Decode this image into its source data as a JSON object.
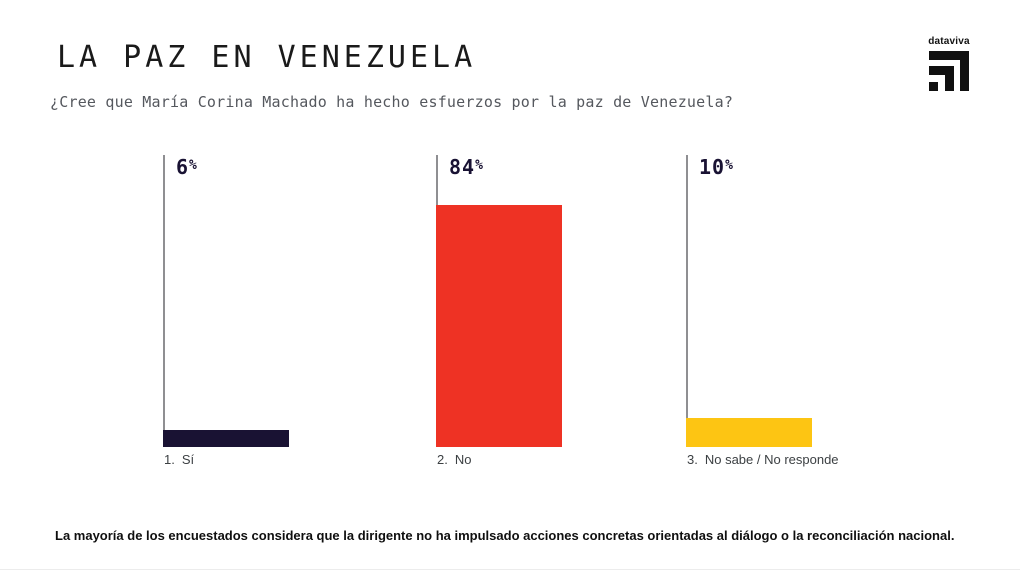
{
  "header": {
    "title": "LA PAZ EN VENEZUELA",
    "question": "¿Cree que María Corina Machado ha hecho esfuerzos por la paz de Venezuela?",
    "brand": {
      "name": "dataviva"
    }
  },
  "chart_data": {
    "type": "bar",
    "title": "LA PAZ EN VENEZUELA",
    "subtitle": "¿Cree que María Corina Machado ha hecho esfuerzos por la paz de Venezuela?",
    "categories": [
      "1. Sí",
      "2. No",
      "3. No sabe / No responde"
    ],
    "values": [
      6,
      84,
      10
    ],
    "value_labels": [
      "6%",
      "84%",
      "10%"
    ],
    "unit": "%",
    "ylim": [
      0,
      100
    ],
    "grid": false,
    "legend_position": "none",
    "bar_colors": [
      "#191233",
      "#ee3224",
      "#fdc513"
    ]
  },
  "groups": [
    {
      "value": 6,
      "cat_num": "1.",
      "cat_text": "Sí",
      "color": "#191233"
    },
    {
      "value": 84,
      "cat_num": "2.",
      "cat_text": "No",
      "color": "#ee3224"
    },
    {
      "value": 10,
      "cat_num": "3.",
      "cat_text": "No sabe / No responde",
      "color": "#fdc513"
    }
  ],
  "ui": {
    "percent_sign": "%"
  },
  "footer": {
    "note": "La mayoría de los encuestados considera que la dirigente no ha impulsado acciones concretas orientadas al diálogo o la reconciliación nacional."
  }
}
